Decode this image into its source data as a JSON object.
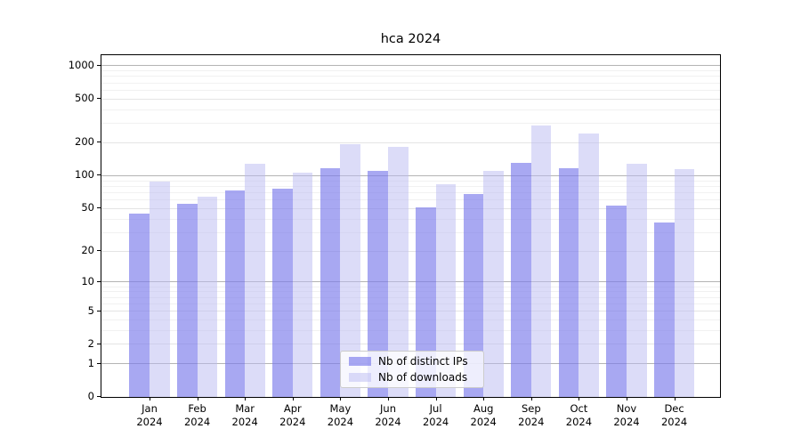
{
  "title": "hca 2024",
  "legend": {
    "items": [
      {
        "label": "Nb of distinct IPs"
      },
      {
        "label": "Nb of downloads"
      }
    ]
  },
  "y_axis": {
    "tick_labels": [
      "0",
      "1",
      "2",
      "5",
      "10",
      "20",
      "50",
      "100",
      "200",
      "500",
      "1000"
    ]
  },
  "x_axis": {
    "months": [
      "Jan",
      "Feb",
      "Mar",
      "Apr",
      "May",
      "Jun",
      "Jul",
      "Aug",
      "Sep",
      "Oct",
      "Nov",
      "Dec"
    ],
    "year": "2024"
  },
  "chart_data": {
    "type": "bar",
    "title": "hca 2024",
    "categories": [
      "Jan 2024",
      "Feb 2024",
      "Mar 2024",
      "Apr 2024",
      "May 2024",
      "Jun 2024",
      "Jul 2024",
      "Aug 2024",
      "Sep 2024",
      "Oct 2024",
      "Nov 2024",
      "Dec 2024"
    ],
    "series": [
      {
        "name": "Nb of distinct IPs",
        "color": "rgba(123,123,235,0.66)",
        "values": [
          45,
          55,
          74,
          76,
          118,
          110,
          51,
          68,
          131,
          117,
          53,
          37
        ]
      },
      {
        "name": "Nb of downloads",
        "color": "rgba(186,186,242,0.5)",
        "values": [
          89,
          64,
          128,
          106,
          194,
          182,
          84,
          110,
          285,
          244,
          128,
          116
        ]
      }
    ],
    "yscale": "log1p",
    "yticks": [
      0,
      1,
      2,
      5,
      10,
      20,
      50,
      100,
      200,
      500,
      1000
    ],
    "minor_yticks": [
      3,
      4,
      6,
      7,
      8,
      9,
      30,
      40,
      60,
      70,
      80,
      90,
      300,
      400,
      600,
      700,
      800,
      900
    ],
    "ylim": [
      0,
      1300
    ],
    "grid": true,
    "legend_position": "lower center"
  }
}
